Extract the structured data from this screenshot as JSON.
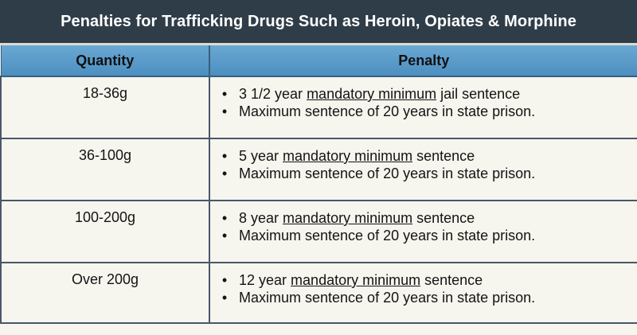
{
  "title": "Penalties for Trafficking Drugs Such as Heroin, Opiates & Morphine",
  "headers": {
    "quantity": "Quantity",
    "penalty": "Penalty"
  },
  "rows": [
    {
      "quantity": "18-36g",
      "line1_pre": "3 1/2 year ",
      "line1_underlined": "mandatory minimum",
      "line1_post": " jail sentence",
      "line2": "Maximum sentence of 20 years in state prison."
    },
    {
      "quantity": "36-100g",
      "line1_pre": "5 year ",
      "line1_underlined": "mandatory minimum",
      "line1_post": " sentence",
      "line2": "Maximum sentence of 20 years in state prison."
    },
    {
      "quantity": "100-200g",
      "line1_pre": "8 year ",
      "line1_underlined": "mandatory minimum",
      "line1_post": " sentence",
      "line2": "Maximum sentence of 20 years in state prison."
    },
    {
      "quantity": "Over 200g",
      "line1_pre": "12 year ",
      "line1_underlined": "mandatory minimum",
      "line1_post": " sentence",
      "line2": "Maximum sentence of 20 years in state prison."
    }
  ],
  "colors": {
    "title_bg": "#2f3d48",
    "header_bg": "#5a9acb",
    "cell_bg": "#f6f5ee",
    "border": "#49576a"
  }
}
